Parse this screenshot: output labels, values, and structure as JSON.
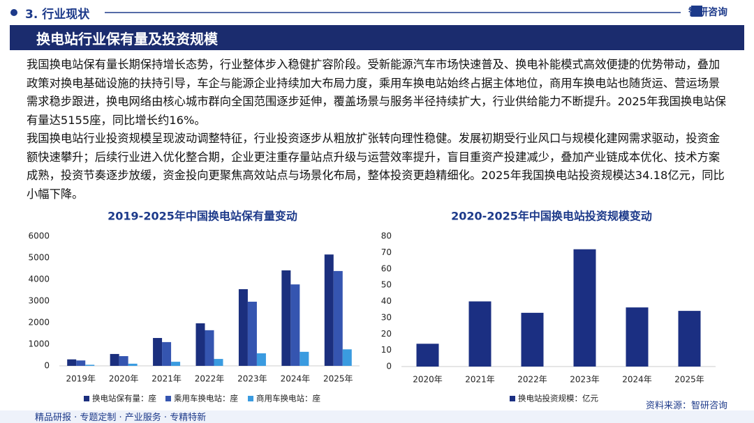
{
  "header": {
    "section": "3. 行业现状",
    "brand": "智研咨询",
    "title": "换电站行业保有量及投资规模"
  },
  "paragraphs": [
    "我国换电站保有量长期保持增长态势，行业整体步入稳健扩容阶段。受新能源汽车市场快速普及、换电补能模式高效便捷的优势带动，叠加政策对换电基础设施的扶持引导，车企与能源企业持续加大布局力度，乘用车换电站始终占据主体地位，商用车换电站也随货运、营运场景需求稳步跟进，换电网络由核心城市群向全国范围逐步延伸，覆盖场景与服务半径持续扩大，行业供给能力不断提升。2025年我国换电站保有量达5155座，同比增长约16%。",
    "我国换电站行业投资规模呈现波动调整特征，行业投资逐步从粗放扩张转向理性稳健。发展初期受行业风口与规模化建网需求驱动，投资金额快速攀升；后续行业进入优化整合期，企业更注重存量站点升级与运营效率提升，盲目重资产投建减少，叠加产业链成本优化、技术方案成熟，投资节奏逐步放缓，资金投向更聚焦高效站点与场景化布局，整体投资更趋精细化。2025年我国换电站投资规模达34.18亿元，同比小幅下降。"
  ],
  "chart_data": [
    {
      "type": "bar",
      "title": "2019-2025年中国换电站保有量变动",
      "categories": [
        "2019年",
        "2020年",
        "2021年",
        "2022年",
        "2023年",
        "2024年",
        "2025年"
      ],
      "series": [
        {
          "name": "换电站保有量：座",
          "color": "#1b2f7e",
          "values": [
            300,
            550,
            1290,
            1970,
            3550,
            4420,
            5155
          ]
        },
        {
          "name": "乘用车换电站：座",
          "color": "#3555b0",
          "values": [
            250,
            450,
            1100,
            1650,
            2970,
            3770,
            4390
          ]
        },
        {
          "name": "商用车换电站：座",
          "color": "#3a9be0",
          "values": [
            50,
            100,
            190,
            320,
            580,
            650,
            765
          ]
        }
      ],
      "ylim": [
        0,
        6000
      ],
      "yticks": [
        0,
        1000,
        2000,
        3000,
        4000,
        5000,
        6000
      ],
      "grid": false
    },
    {
      "type": "bar",
      "title": "2020-2025年中国换电站投资规模变动",
      "categories": [
        "2020年",
        "2021年",
        "2022年",
        "2023年",
        "2024年",
        "2025年"
      ],
      "series": [
        {
          "name": "换电站投资规模：亿元",
          "color": "#1b2f82",
          "values": [
            14,
            40,
            33,
            72,
            36.3,
            34.18
          ]
        }
      ],
      "ylim": [
        0,
        80
      ],
      "yticks": [
        0,
        10,
        20,
        30,
        40,
        50,
        60,
        70,
        80
      ],
      "grid": false
    }
  ],
  "source": "资料来源：智研咨询",
  "footer": "精品研报 · 专题定制 · 产业服务 · 专精特新"
}
